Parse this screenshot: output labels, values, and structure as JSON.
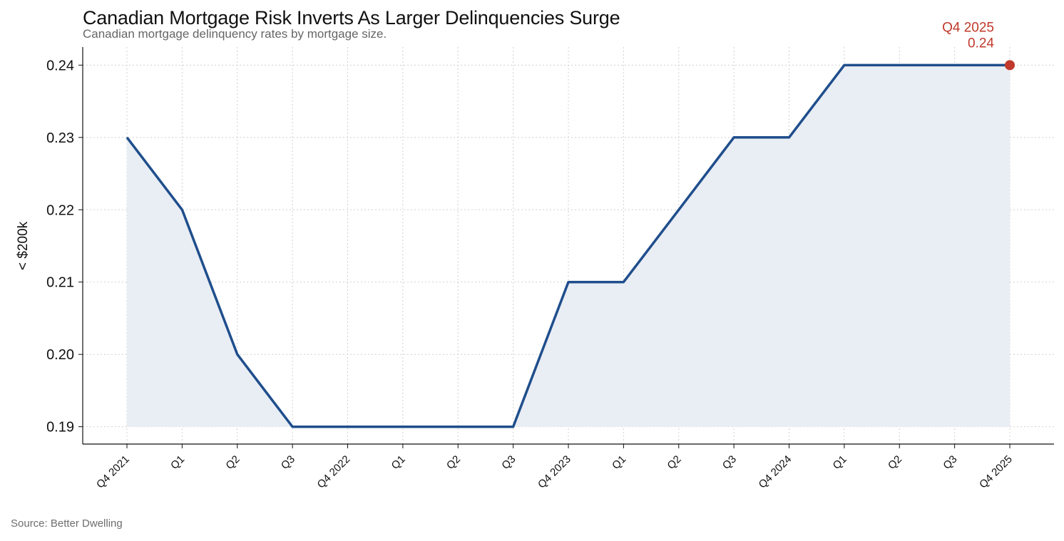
{
  "chart_data": {
    "type": "area",
    "title": "Canadian Mortgage Risk Inverts As Larger Delinquencies Surge",
    "subtitle": "Canadian mortgage delinquency rates by mortgage size.",
    "xlabel": "",
    "ylabel": "< $200k",
    "categories": [
      "Q4 2021",
      "Q1",
      "Q2",
      "Q3",
      "Q4 2022",
      "Q1",
      "Q2",
      "Q3",
      "Q4 2023",
      "Q1",
      "Q2",
      "Q3",
      "Q4 2024",
      "Q1",
      "Q2",
      "Q3",
      "Q4 2025"
    ],
    "series": [
      {
        "values": [
          0.23,
          0.22,
          0.2,
          0.19,
          0.19,
          0.19,
          0.19,
          0.19,
          0.21,
          0.21,
          0.22,
          0.23,
          0.23,
          0.24,
          0.24,
          0.24,
          0.24
        ]
      }
    ],
    "yticks": [
      "0.19",
      "0.20",
      "0.21",
      "0.22",
      "0.23",
      "0.24"
    ],
    "ylim": [
      0.1876,
      0.2425
    ],
    "grid": true,
    "fill_baseline": 0.19,
    "annotation": {
      "label": "Q4 2025",
      "value": "0.24"
    },
    "colors": {
      "line": "#1f4e8c",
      "fill": "#e9edf4",
      "highlight": "#c0392b",
      "grid": "#d0d0d0"
    },
    "source": "Source: Better Dwelling"
  }
}
